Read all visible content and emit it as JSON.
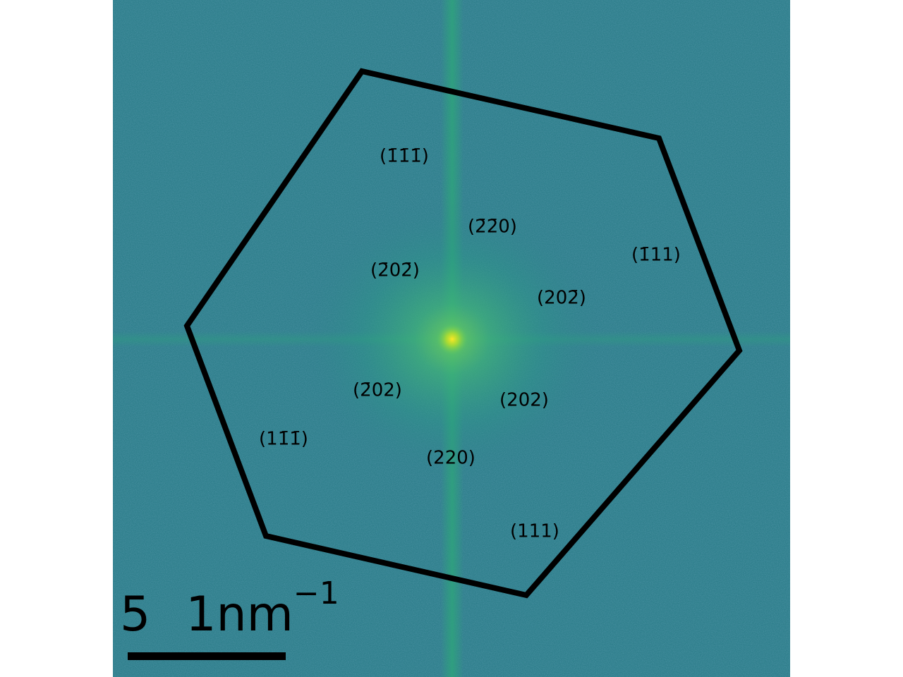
{
  "image": {
    "colormap": "viridis",
    "background_color": "#2f7f8c",
    "center_color": "#fde725",
    "glow_color": "#3fb478",
    "streak_color": "#2ea37c"
  },
  "outline": {
    "shape": "hexagon",
    "color": "#000000"
  },
  "reflections": [
    {
      "label": "(1̄1̄1̄)"
    },
    {
      "label": "(2̄2̄0)"
    },
    {
      "label": "(1̄11)"
    },
    {
      "label": "(2̄02̄)"
    },
    {
      "label": "(202̄)"
    },
    {
      "label": "(2̄02)"
    },
    {
      "label": "(202)"
    },
    {
      "label": "(11̄1̄)"
    },
    {
      "label": "(220)"
    },
    {
      "label": "(111)"
    }
  ],
  "scale_bar": {
    "value": "5",
    "unit": "1nm",
    "exponent": "−1",
    "color": "#000000"
  }
}
